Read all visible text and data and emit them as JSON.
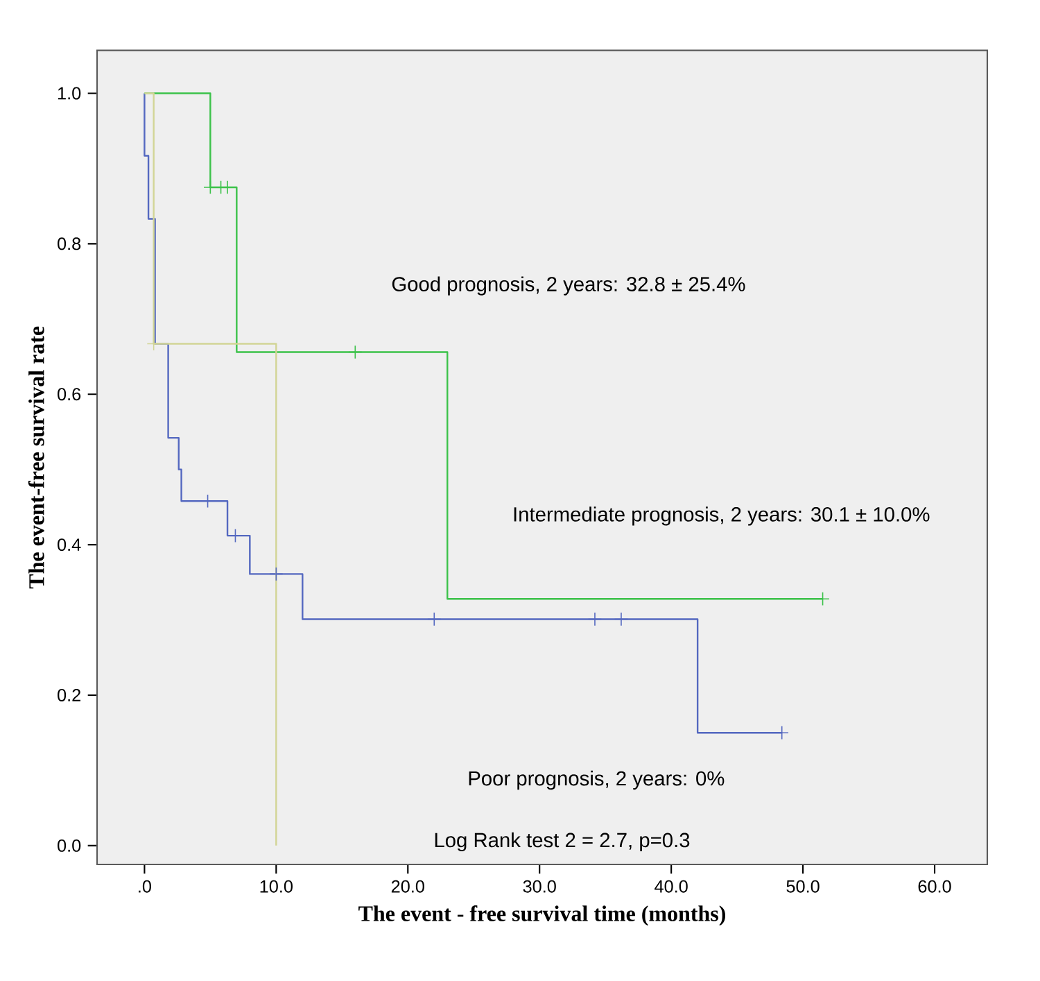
{
  "chart_data": {
    "type": "step",
    "xlabel": "The event - free survival time (months)",
    "ylabel": "The event-free survival rate",
    "xlim": [
      -3.6,
      64.0
    ],
    "ylim": [
      -0.025,
      1.057
    ],
    "xticks": [
      {
        "value": 0,
        "label": ".0"
      },
      {
        "value": 10,
        "label": "10.0"
      },
      {
        "value": 20,
        "label": "20.0"
      },
      {
        "value": 30,
        "label": "30.0"
      },
      {
        "value": 40,
        "label": "40.0"
      },
      {
        "value": 50,
        "label": "50.0"
      },
      {
        "value": 60,
        "label": "60.0"
      }
    ],
    "yticks": [
      {
        "value": 0,
        "label": "0.0"
      },
      {
        "value": 0.2,
        "label": "0.2"
      },
      {
        "value": 0.4,
        "label": "0.4"
      },
      {
        "value": 0.6,
        "label": "0.6"
      },
      {
        "value": 0.8,
        "label": "0.8"
      },
      {
        "value": 1.0,
        "label": "1.0"
      }
    ],
    "grid": false,
    "marker": "none",
    "line_style": "solid",
    "series": [
      {
        "color": "#5468c0",
        "x": [
          0,
          0,
          0.3,
          0.8,
          1.8,
          2.6,
          2.8,
          6.3,
          8,
          12,
          42,
          48.4
        ],
        "values": [
          1,
          0.917,
          0.833,
          0.667,
          0.542,
          0.5,
          0.458,
          0.412,
          0.361,
          0.301,
          0.15,
          0.15
        ]
      },
      {
        "color": "#3cc24a",
        "x": [
          0,
          5,
          7,
          23,
          51.5
        ],
        "values": [
          1,
          0.875,
          0.656,
          0.328,
          0.328
        ]
      },
      {
        "color": "#d2d596",
        "x": [
          0,
          0.7,
          10
        ],
        "values": [
          1,
          0.667,
          0
        ]
      },
      {
        "type": "scatter",
        "marker": "cross",
        "color": "#5468c0",
        "x": [
          4.8,
          6.9,
          10,
          22,
          34.2,
          36.2,
          48.4
        ],
        "values": [
          0.458,
          0.412,
          0.361,
          0.301,
          0.301,
          0.301,
          0.15
        ]
      },
      {
        "type": "scatter",
        "marker": "cross",
        "color": "#3cc24a",
        "x": [
          5,
          5.8,
          6.3,
          16,
          51.5
        ],
        "values": [
          0.875,
          0.875,
          0.875,
          0.656,
          0.328
        ]
      },
      {
        "type": "scatter",
        "marker": "cross",
        "color": "#d2d596",
        "x": [
          0.7
        ],
        "values": [
          0.667
        ]
      }
    ],
    "annotations": [
      "Good prognosis, 2 years: 32.8 ± 25.4%",
      "Intermediate prognosis, 2 years: 30.1 ± 10.0%",
      "Poor prognosis, 2 years: 0%",
      "Log Rank test 2 = 2.7, p=0.3"
    ]
  }
}
